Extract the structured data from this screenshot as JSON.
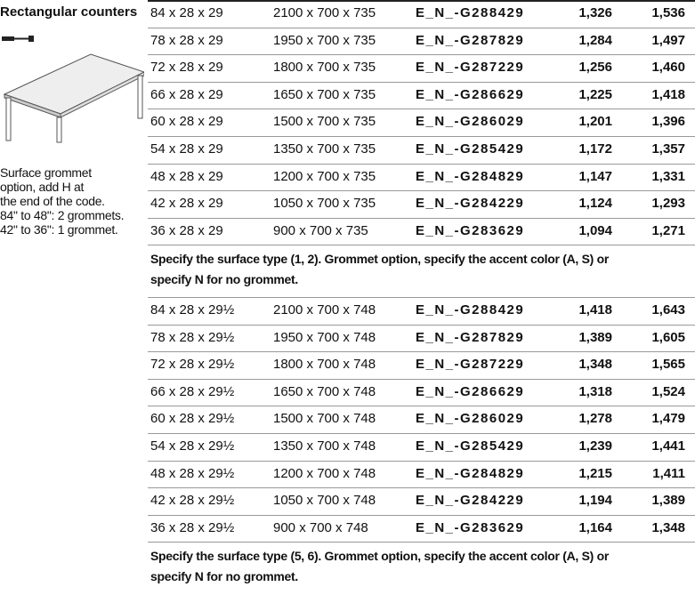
{
  "side": {
    "title": "Rectangular counters",
    "note": [
      "Surface grommet",
      "option, add H at",
      "the end of the code.",
      "84\" to 48\": 2 grommets.",
      "42\" to 36\": 1 grommet."
    ]
  },
  "tables": [
    {
      "rows": [
        [
          "84 x 28 x 29",
          "2100 x 700 x 735",
          "E_N_-G288429",
          "1,326",
          "1,536"
        ],
        [
          "78 x 28 x 29",
          "1950 x 700 x 735",
          "E_N_-G287829",
          "1,284",
          "1,497"
        ],
        [
          "72 x 28 x 29",
          "1800 x 700 x 735",
          "E_N_-G287229",
          "1,256",
          "1,460"
        ],
        [
          "66 x 28 x 29",
          "1650 x 700 x 735",
          "E_N_-G286629",
          "1,225",
          "1,418"
        ],
        [
          "60 x 28 x 29",
          "1500 x 700 x 735",
          "E_N_-G286029",
          "1,201",
          "1,396"
        ],
        [
          "54 x 28 x 29",
          "1350 x 700 x 735",
          "E_N_-G285429",
          "1,172",
          "1,357"
        ],
        [
          "48 x 28 x 29",
          "1200 x 700 x 735",
          "E_N_-G284829",
          "1,147",
          "1,331"
        ],
        [
          "42 x 28 x 29",
          "1050 x 700 x 735",
          "E_N_-G284229",
          "1,124",
          "1,293"
        ],
        [
          "36 x 28 x 29",
          "900 x 700 x 735",
          "E_N_-G283629",
          "1,094",
          "1,271"
        ]
      ],
      "note": [
        "Specify the surface type (1, 2). Grommet option, specify the accent color (A, S) or",
        "specify N for no grommet."
      ]
    },
    {
      "rows": [
        [
          "84 x 28 x 29½",
          "2100 x 700 x 748",
          "E_N_-G288429",
          "1,418",
          "1,643"
        ],
        [
          "78 x 28 x 29½",
          "1950 x 700 x 748",
          "E_N_-G287829",
          "1,389",
          "1,605"
        ],
        [
          "72 x 28 x 29½",
          "1800 x 700 x 748",
          "E_N_-G287229",
          "1,348",
          "1,565"
        ],
        [
          "66 x 28 x 29½",
          "1650 x 700 x 748",
          "E_N_-G286629",
          "1,318",
          "1,524"
        ],
        [
          "60 x 28 x 29½",
          "1500 x 700 x 748",
          "E_N_-G286029",
          "1,278",
          "1,479"
        ],
        [
          "54 x 28 x 29½",
          "1350 x 700 x 748",
          "E_N_-G285429",
          "1,239",
          "1,441"
        ],
        [
          "48 x 28 x 29½",
          "1200 x 700 x 748",
          "E_N_-G284829",
          "1,215",
          "1,411"
        ],
        [
          "42 x 28 x 29½",
          "1050 x 700 x 748",
          "E_N_-G284229",
          "1,194",
          "1,389"
        ],
        [
          "36 x 28 x 29½",
          "900 x 700 x 748",
          "E_N_-G283629",
          "1,164",
          "1,348"
        ]
      ],
      "note": [
        "Specify the surface type (5, 6). Grommet option, specify the accent color (A, S) or",
        "specify N for no grommet."
      ]
    }
  ]
}
